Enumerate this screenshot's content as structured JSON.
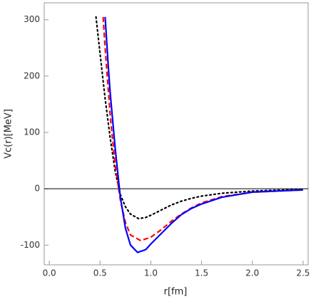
{
  "chart_data": {
    "type": "line",
    "x_label": "r[fm]",
    "y_label": "Vc(r)[MeV]",
    "xlim": [
      -0.05,
      2.55
    ],
    "ylim": [
      -135,
      330
    ],
    "xticks": [
      {
        "value": 0,
        "label": "0.0"
      },
      0.5,
      {
        "value": 1,
        "label": "1.0"
      },
      1.5,
      {
        "value": 2,
        "label": "2.0"
      },
      2.5
    ],
    "yticks": [
      -100,
      0,
      100,
      200,
      300
    ],
    "zero_line": true,
    "series": [
      {
        "color": "#000000",
        "dash": "dotted",
        "x": [
          0.46,
          0.5,
          0.55,
          0.6,
          0.65,
          0.7,
          0.75,
          0.8,
          0.88,
          0.95,
          1.0,
          1.1,
          1.2,
          1.3,
          1.4,
          1.5,
          1.7,
          2.0,
          2.5
        ],
        "values": [
          305,
          240,
          160,
          90,
          30,
          -10,
          -32,
          -45,
          -53,
          -51,
          -47,
          -38,
          -29,
          -22,
          -17,
          -13,
          -8,
          -4,
          -1
        ]
      },
      {
        "color": "#ff0000",
        "dash": "dashed",
        "x": [
          0.53,
          0.55,
          0.6,
          0.65,
          0.7,
          0.75,
          0.8,
          0.9,
          1.0,
          1.1,
          1.2,
          1.3,
          1.4,
          1.5,
          1.7,
          2.0,
          2.5
        ],
        "values": [
          305,
          250,
          130,
          40,
          -20,
          -60,
          -82,
          -92,
          -86,
          -73,
          -58,
          -45,
          -34,
          -25,
          -14,
          -6,
          -2
        ]
      },
      {
        "color": "#0000ff",
        "dash": "solid",
        "x": [
          0.55,
          0.58,
          0.6,
          0.65,
          0.7,
          0.75,
          0.8,
          0.87,
          0.95,
          1.0,
          1.1,
          1.2,
          1.3,
          1.4,
          1.5,
          1.7,
          2.0,
          2.5
        ],
        "values": [
          305,
          220,
          170,
          70,
          -15,
          -70,
          -100,
          -113,
          -108,
          -98,
          -80,
          -62,
          -46,
          -35,
          -27,
          -15,
          -6,
          -2
        ]
      }
    ]
  }
}
